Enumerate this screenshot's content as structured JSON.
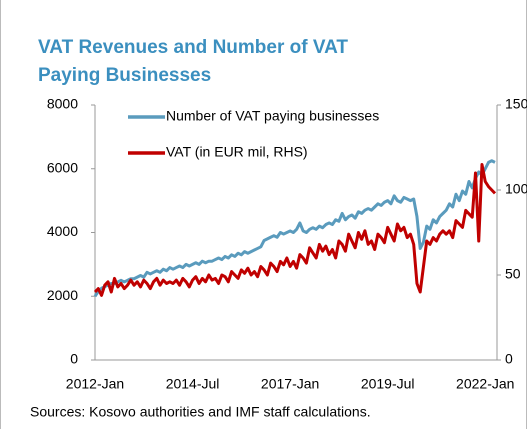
{
  "chart_data": {
    "type": "line",
    "title": [
      "VAT Revenues and Number of VAT",
      "Paying Businesses"
    ],
    "source": "Sources: Kosovo authorities and IMF staff calculations.",
    "categories": [
      "2012-Jan",
      null,
      null,
      null,
      null,
      null,
      null,
      null,
      null,
      null,
      null,
      null,
      null,
      null,
      null,
      null,
      null,
      null,
      null,
      null,
      null,
      null,
      null,
      null,
      null,
      null,
      null,
      null,
      null,
      null,
      "2014-Jul",
      null,
      null,
      null,
      null,
      null,
      null,
      null,
      null,
      null,
      null,
      null,
      null,
      null,
      null,
      null,
      null,
      null,
      null,
      null,
      null,
      null,
      null,
      null,
      null,
      null,
      null,
      null,
      null,
      null,
      "2017-Jan",
      null,
      null,
      null,
      null,
      null,
      null,
      null,
      null,
      null,
      null,
      null,
      null,
      null,
      null,
      null,
      null,
      null,
      null,
      null,
      null,
      null,
      null,
      null,
      null,
      null,
      null,
      null,
      null,
      null,
      "2019-Jul",
      null,
      null,
      null,
      null,
      null,
      null,
      null,
      null,
      null,
      null,
      null,
      null,
      null,
      null,
      null,
      null,
      null,
      null,
      null,
      null,
      null,
      null,
      null,
      null,
      null,
      null,
      null,
      null,
      null,
      "2022-Jan",
      null,
      null,
      null
    ],
    "series": [
      {
        "name": "Number of VAT paying businesses",
        "color": "#5a9bbd",
        "axis": "y",
        "values": [
          2000,
          2150,
          2250,
          2300,
          2350,
          2400,
          2400,
          2450,
          2500,
          2450,
          2500,
          2550,
          2550,
          2600,
          2650,
          2600,
          2750,
          2700,
          2750,
          2800,
          2750,
          2850,
          2800,
          2900,
          2850,
          2900,
          2950,
          2900,
          3000,
          2950,
          3000,
          3050,
          3000,
          3100,
          3050,
          3100,
          3100,
          3150,
          3200,
          3150,
          3250,
          3200,
          3300,
          3250,
          3350,
          3300,
          3400,
          3350,
          3400,
          3450,
          3500,
          3550,
          3750,
          3800,
          3850,
          3900,
          3850,
          4000,
          3950,
          4000,
          4050,
          4000,
          4100,
          4300,
          4050,
          4000,
          4100,
          4150,
          4100,
          4200,
          4150,
          4250,
          4300,
          4250,
          4400,
          4350,
          4600,
          4400,
          4500,
          4550,
          4450,
          4650,
          4600,
          4700,
          4750,
          4700,
          4800,
          4900,
          4850,
          4950,
          5000,
          4900,
          5150,
          5000,
          4950,
          5100,
          5050,
          5000,
          5050,
          4500,
          3500,
          3700,
          4200,
          4100,
          4400,
          4300,
          4500,
          4600,
          4700,
          4900,
          4800,
          5200,
          5000,
          5300,
          5200,
          5600,
          5400,
          5700,
          5900,
          5800,
          6000,
          6200,
          6250,
          6200
        ]
      },
      {
        "name": "VAT (in EUR mil, RHS)",
        "color": "#c00000",
        "axis": "y2",
        "values": [
          40,
          42,
          38,
          44,
          46,
          40,
          48,
          43,
          45,
          42,
          44,
          47,
          44,
          46,
          43,
          47,
          45,
          42,
          46,
          48,
          44,
          47,
          45,
          46,
          45,
          47,
          44,
          48,
          46,
          43,
          47,
          49,
          45,
          48,
          46,
          50,
          47,
          48,
          45,
          50,
          49,
          46,
          52,
          50,
          48,
          53,
          51,
          54,
          50,
          52,
          49,
          55,
          53,
          50,
          57,
          55,
          52,
          58,
          56,
          60,
          55,
          58,
          54,
          62,
          60,
          57,
          66,
          63,
          60,
          68,
          64,
          67,
          62,
          65,
          60,
          70,
          68,
          64,
          74,
          70,
          66,
          75,
          71,
          76,
          68,
          70,
          65,
          74,
          72,
          69,
          78,
          74,
          70,
          80,
          76,
          78,
          72,
          74,
          68,
          45,
          40,
          55,
          70,
          68,
          72,
          70,
          74,
          76,
          74,
          76,
          72,
          82,
          80,
          78,
          88,
          86,
          84,
          110,
          70,
          115,
          105,
          102,
          100,
          98
        ]
      }
    ],
    "ylim": [
      0,
      8000
    ],
    "yticks": [
      0,
      2000,
      4000,
      6000,
      8000
    ],
    "y2lim": [
      0,
      150
    ],
    "y2ticks": [
      0,
      50,
      100,
      150
    ],
    "legend": "upper left"
  }
}
